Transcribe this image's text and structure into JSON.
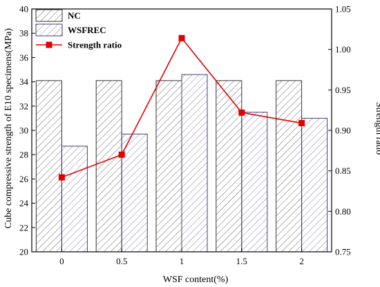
{
  "chart_data": {
    "type": "bar",
    "categories": [
      "0",
      "0.5",
      "1",
      "1.5",
      "2"
    ],
    "series": [
      {
        "name": "NC",
        "kind": "bar",
        "axis": "left",
        "values": [
          34.1,
          34.1,
          34.1,
          34.1,
          34.1
        ]
      },
      {
        "name": "WSFREC",
        "kind": "bar",
        "axis": "left",
        "values": [
          28.7,
          29.7,
          34.6,
          31.5,
          31.0
        ]
      },
      {
        "name": "Strength ratio",
        "kind": "line",
        "axis": "right",
        "values": [
          0.842,
          0.87,
          1.014,
          0.922,
          0.909
        ]
      }
    ],
    "xlabel": "WSF content(%)",
    "ylabel": "Cube compressive strength of E10 specimens(MPa)",
    "y2label": "Strength ratio",
    "ylim": [
      20,
      40
    ],
    "y2lim": [
      0.75,
      1.05
    ],
    "yticks": [
      "20",
      "22",
      "24",
      "26",
      "28",
      "30",
      "32",
      "34",
      "36",
      "38",
      "40"
    ],
    "y2ticks": [
      "0.75",
      "0.80",
      "0.85",
      "0.90",
      "0.95",
      "1.00",
      "1.05"
    ],
    "legend_position": "top-left",
    "colors": {
      "nc_hatch": "#555555",
      "wsfrec_hatch": "#7a6aa8",
      "ratio_line": "#e00000"
    }
  }
}
